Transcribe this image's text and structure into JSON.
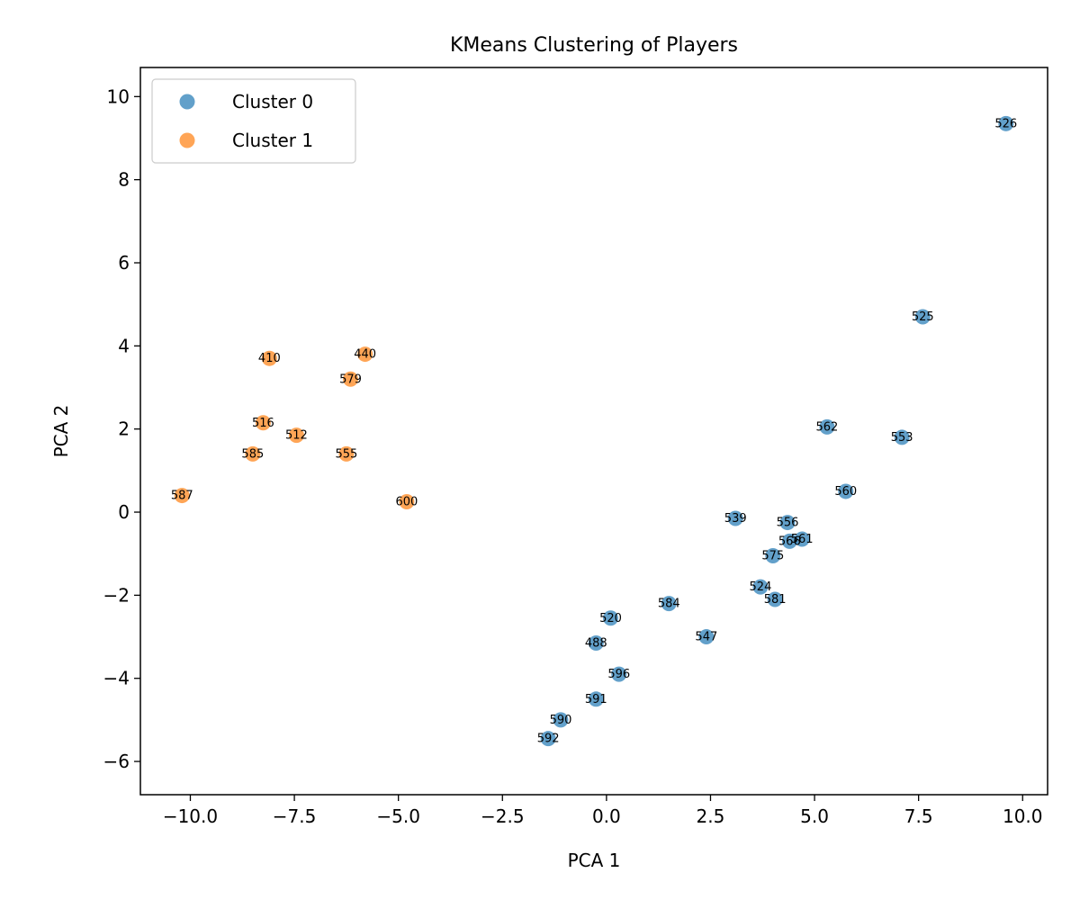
{
  "chart_data": {
    "type": "scatter",
    "title": "KMeans Clustering of Players",
    "xlabel": "PCA 1",
    "ylabel": "PCA 2",
    "xlim": [
      -11.2,
      10.6
    ],
    "ylim": [
      -6.8,
      10.7
    ],
    "xticks": [
      -10.0,
      -7.5,
      -5.0,
      -2.5,
      0.0,
      2.5,
      5.0,
      7.5,
      10.0
    ],
    "xtick_labels": [
      "−10.0",
      "−7.5",
      "−5.0",
      "−2.5",
      "0.0",
      "2.5",
      "5.0",
      "7.5",
      "10.0"
    ],
    "yticks": [
      -6,
      -4,
      -2,
      0,
      2,
      4,
      6,
      8,
      10
    ],
    "ytick_labels": [
      "−6",
      "−4",
      "−2",
      "0",
      "2",
      "4",
      "6",
      "8",
      "10"
    ],
    "grid": false,
    "legend_position": "top-left",
    "series": [
      {
        "name": "Cluster 0",
        "color": "#1f77b4",
        "points": [
          {
            "x": 9.6,
            "y": 9.35,
            "label": "526"
          },
          {
            "x": 7.6,
            "y": 4.7,
            "label": "525"
          },
          {
            "x": 5.3,
            "y": 2.05,
            "label": "562"
          },
          {
            "x": 7.1,
            "y": 1.8,
            "label": "553"
          },
          {
            "x": 5.75,
            "y": 0.5,
            "label": "560"
          },
          {
            "x": 3.1,
            "y": -0.15,
            "label": "539"
          },
          {
            "x": 4.35,
            "y": -0.25,
            "label": "556"
          },
          {
            "x": 4.7,
            "y": -0.65,
            "label": "561"
          },
          {
            "x": 4.4,
            "y": -0.7,
            "label": "566"
          },
          {
            "x": 4.0,
            "y": -1.05,
            "label": "575"
          },
          {
            "x": 3.7,
            "y": -1.8,
            "label": "524"
          },
          {
            "x": 4.05,
            "y": -2.1,
            "label": "581"
          },
          {
            "x": 1.5,
            "y": -2.2,
            "label": "584"
          },
          {
            "x": 0.1,
            "y": -2.55,
            "label": "520"
          },
          {
            "x": 2.4,
            "y": -3.0,
            "label": "547"
          },
          {
            "x": -0.25,
            "y": -3.15,
            "label": "488"
          },
          {
            "x": 0.3,
            "y": -3.9,
            "label": "596"
          },
          {
            "x": -0.25,
            "y": -4.5,
            "label": "591"
          },
          {
            "x": -1.1,
            "y": -5.0,
            "label": "590"
          },
          {
            "x": -1.4,
            "y": -5.45,
            "label": "592"
          }
        ]
      },
      {
        "name": "Cluster 1",
        "color": "#ff7f0e",
        "points": [
          {
            "x": -10.2,
            "y": 0.4,
            "label": "587"
          },
          {
            "x": -8.1,
            "y": 3.7,
            "label": "410"
          },
          {
            "x": -5.8,
            "y": 3.8,
            "label": "440"
          },
          {
            "x": -6.15,
            "y": 3.2,
            "label": "579"
          },
          {
            "x": -8.25,
            "y": 2.15,
            "label": "516"
          },
          {
            "x": -7.45,
            "y": 1.85,
            "label": "512"
          },
          {
            "x": -8.5,
            "y": 1.4,
            "label": "585"
          },
          {
            "x": -6.25,
            "y": 1.4,
            "label": "555"
          },
          {
            "x": -4.8,
            "y": 0.25,
            "label": "600"
          }
        ]
      }
    ]
  }
}
